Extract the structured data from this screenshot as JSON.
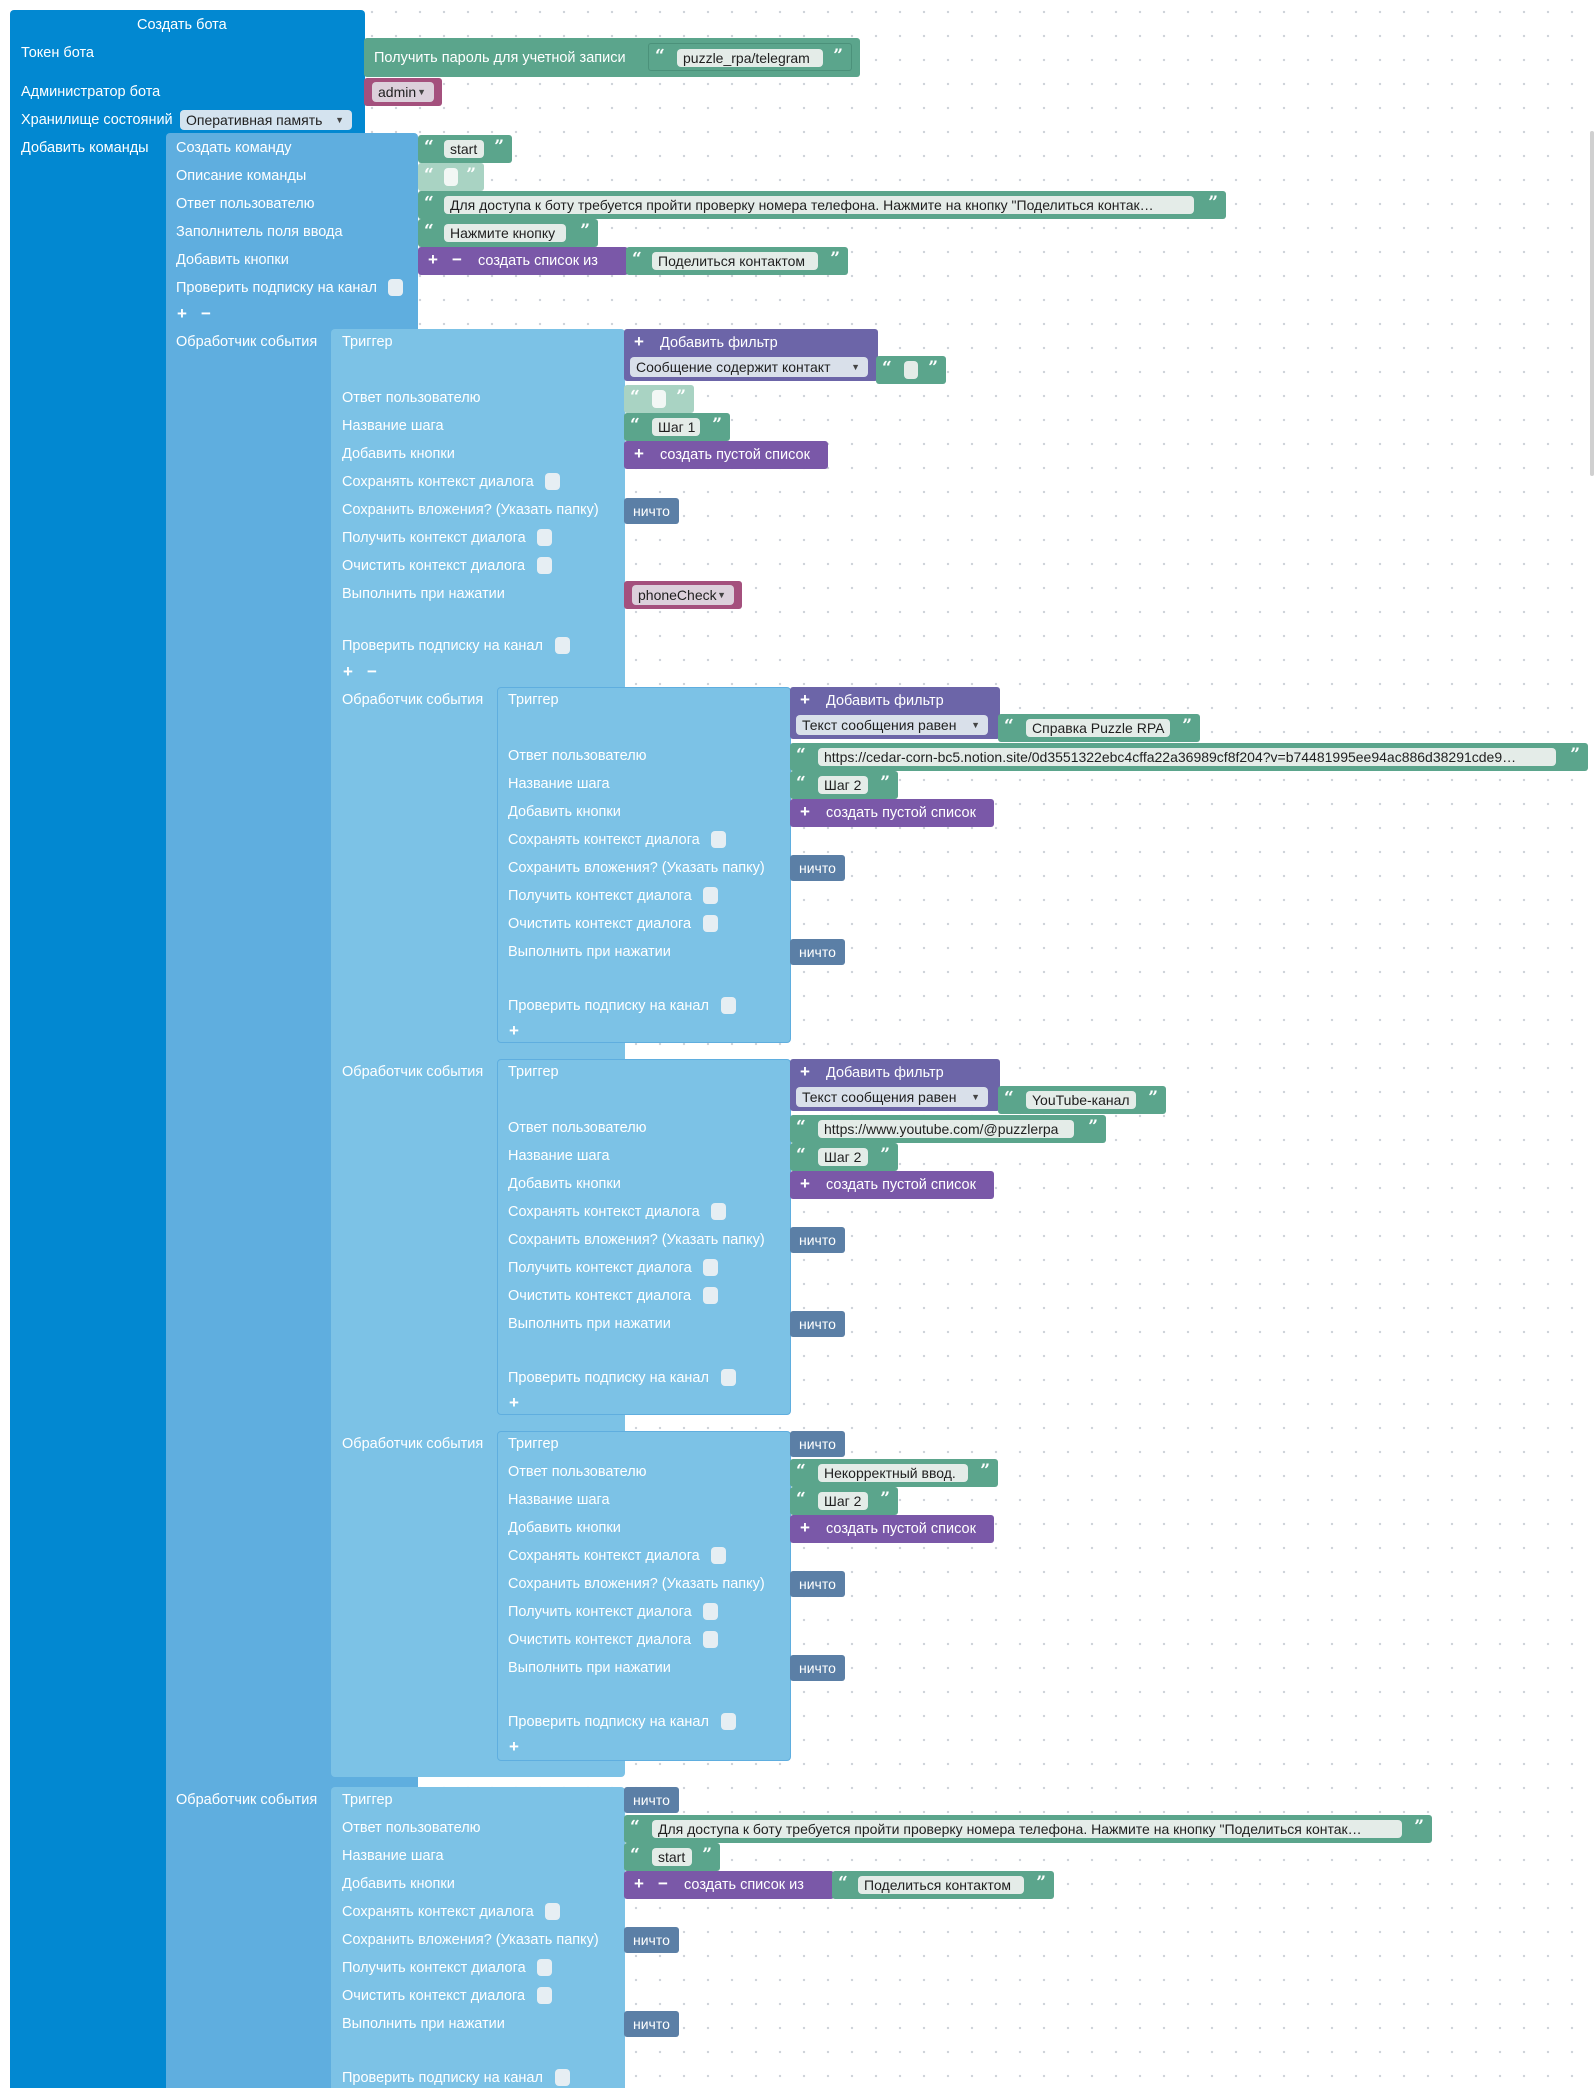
{
  "root": {
    "title": "Создать бота",
    "labels": {
      "token": "Токен бота",
      "admin": "Администратор бота",
      "storage": "Хранилище состояний",
      "commands": "Добавить команды"
    },
    "token_block": "Получить пароль для учетной записи",
    "token_value": "puzzle_rpa/telegram",
    "admin_value": "admin",
    "storage_value": "Оперативная память"
  },
  "command": {
    "labels": {
      "create": "Создать команду",
      "description": "Описание команды",
      "reply": "Ответ пользователю",
      "placeholder": "Заполнитель поля ввода",
      "buttons": "Добавить кнопки",
      "subscription": "Проверить подписку на канал",
      "handler": "Обработчик события"
    },
    "name": "start",
    "reply_text": "Для доступа к боту требуется пройти проверку номера телефона. Нажмите на кнопку \"Поделиться контак…",
    "placeholder_text": "Нажмите кнопку",
    "list_from": "создать список из",
    "button_text": "Поделиться контактом"
  },
  "handler_labels": {
    "trigger": "Триггер",
    "reply": "Ответ пользователю",
    "step": "Название шага",
    "buttons": "Добавить кнопки",
    "save_ctx": "Сохранять контекст диалога",
    "save_att": "Сохранить вложения? (Указать папку)",
    "get_ctx": "Получить контекст диалога",
    "clear_ctx": "Очистить контекст диалога",
    "on_click": "Выполнить при нажатии",
    "subscription": "Проверить подписку на канал",
    "handler": "Обработчик события"
  },
  "common": {
    "add_filter": "Добавить фильтр",
    "empty_list": "создать пустой список",
    "nothing": "ничто"
  },
  "handlers": {
    "h1": {
      "filter_type": "Сообщение содержит контакт",
      "step": "Шаг 1",
      "on_click": "phoneCheck"
    },
    "h2": {
      "filter_type": "Текст сообщения равен",
      "filter_value": "Справка Puzzle RPA",
      "reply": "https://cedar-corn-bc5.notion.site/0d3551322ebc4cffa22a36989cf8f204?v=b74481995ee94ac886d38291cde9…",
      "step": "Шаг 2"
    },
    "h3": {
      "filter_type": "Текст сообщения равен",
      "filter_value": "YouTube-канал",
      "reply": "https://www.youtube.com/@puzzlerpa",
      "step": "Шаг 2"
    },
    "h4": {
      "reply": "Некорректный ввод.",
      "step": "Шаг 2"
    },
    "h5": {
      "reply": "Для доступа к боту требуется пройти проверку номера телефона. Нажмите на кнопку \"Поделиться контак…",
      "step": "start",
      "button_text": "Поделиться контактом"
    }
  }
}
